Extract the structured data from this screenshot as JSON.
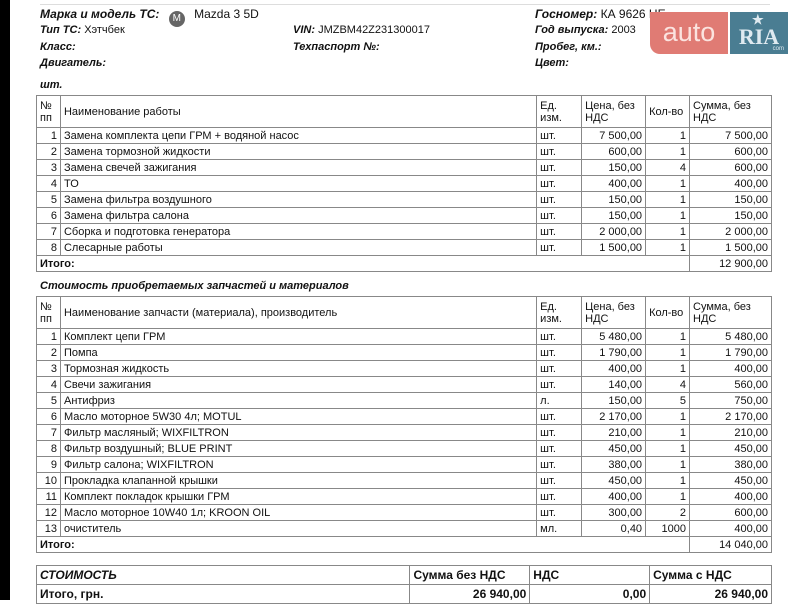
{
  "vehicle": {
    "make_label": "Марка и модель ТС:",
    "make_value": "Mazda 3 5D",
    "type_label": "Тип ТС:",
    "type_value": "Хэтчбек",
    "class_label": "Класс:",
    "engine_label": "Двигатель:",
    "vin_label": "VIN:",
    "vin_value": "JMZBM42Z231300017",
    "passport_label": "Техпаспорт №:",
    "plate_label": "Госномер:",
    "plate_value": "КА 9626 НЕ",
    "year_label": "Год выпуска:",
    "year_value": "2003",
    "mileage_label": "Пробег, км.:",
    "color_label": "Цвет:"
  },
  "logo": {
    "auto": "auto",
    "ria": "RIA",
    "com": "com",
    "auto_color": "#e07b74",
    "ria_color": "#4a7d92"
  },
  "works": {
    "section_title": "шт.",
    "headers": {
      "num": "№ пп",
      "name": "Наименование работы",
      "unit": "Ед. изм.",
      "price": "Цена, без НДС",
      "qty": "Кол-во",
      "sum": "Сумма, без НДС"
    },
    "rows": [
      {
        "n": "1",
        "name": "Замена комплекта цепи ГРМ + водяной насос",
        "unit": "шт.",
        "price": "7 500,00",
        "qty": "1",
        "sum": "7 500,00"
      },
      {
        "n": "2",
        "name": "Замена тормозной жидкости",
        "unit": "шт.",
        "price": "600,00",
        "qty": "1",
        "sum": "600,00"
      },
      {
        "n": "3",
        "name": "Замена свечей зажигания",
        "unit": "шт.",
        "price": "150,00",
        "qty": "4",
        "sum": "600,00"
      },
      {
        "n": "4",
        "name": "ТО",
        "unit": "шт.",
        "price": "400,00",
        "qty": "1",
        "sum": "400,00"
      },
      {
        "n": "5",
        "name": "Замена фильтра воздушного",
        "unit": "шт.",
        "price": "150,00",
        "qty": "1",
        "sum": "150,00"
      },
      {
        "n": "6",
        "name": "Замена фильтра салона",
        "unit": "шт.",
        "price": "150,00",
        "qty": "1",
        "sum": "150,00"
      },
      {
        "n": "7",
        "name": "Сборка и подготовка генератора",
        "unit": "шт.",
        "price": "2 000,00",
        "qty": "1",
        "sum": "2 000,00"
      },
      {
        "n": "8",
        "name": "Слесарные работы",
        "unit": "шт.",
        "price": "1 500,00",
        "qty": "1",
        "sum": "1 500,00"
      }
    ],
    "total_label": "Итого:",
    "total_value": "12 900,00"
  },
  "parts": {
    "section_title": "Стоимость приобретаемых запчастей и материалов",
    "headers": {
      "num": "№ пп",
      "name": "Наименование запчасти (материала), производитель",
      "unit": "Ед. изм.",
      "price": "Цена, без НДС",
      "qty": "Кол-во",
      "sum": "Сумма, без НДС"
    },
    "rows": [
      {
        "n": "1",
        "name": "Комплект цепи ГРМ",
        "unit": "шт.",
        "price": "5 480,00",
        "qty": "1",
        "sum": "5 480,00"
      },
      {
        "n": "2",
        "name": "Помпа",
        "unit": "шт.",
        "price": "1 790,00",
        "qty": "1",
        "sum": "1 790,00"
      },
      {
        "n": "3",
        "name": "Тормозная жидкость",
        "unit": "шт.",
        "price": "400,00",
        "qty": "1",
        "sum": "400,00"
      },
      {
        "n": "4",
        "name": "Свечи зажигания",
        "unit": "шт.",
        "price": "140,00",
        "qty": "4",
        "sum": "560,00"
      },
      {
        "n": "5",
        "name": "Антифриз",
        "unit": "л.",
        "price": "150,00",
        "qty": "5",
        "sum": "750,00"
      },
      {
        "n": "6",
        "name": "Масло моторное 5W30 4л; MOTUL",
        "unit": "шт.",
        "price": "2 170,00",
        "qty": "1",
        "sum": "2 170,00"
      },
      {
        "n": "7",
        "name": "Фильтр масляный; WIXFILTRON",
        "unit": "шт.",
        "price": "210,00",
        "qty": "1",
        "sum": "210,00"
      },
      {
        "n": "8",
        "name": "Фильтр воздушный; BLUE PRINT",
        "unit": "шт.",
        "price": "450,00",
        "qty": "1",
        "sum": "450,00"
      },
      {
        "n": "9",
        "name": "Фильтр салона; WIXFILTRON",
        "unit": "шт.",
        "price": "380,00",
        "qty": "1",
        "sum": "380,00"
      },
      {
        "n": "10",
        "name": "Прокладка клапанной крышки",
        "unit": "шт.",
        "price": "450,00",
        "qty": "1",
        "sum": "450,00"
      },
      {
        "n": "11",
        "name": "Комплект покладок крышки ГРМ",
        "unit": "шт.",
        "price": "400,00",
        "qty": "1",
        "sum": "400,00"
      },
      {
        "n": "12",
        "name": "Масло моторное 10W40 1л; KROON OIL",
        "unit": "шт.",
        "price": "300,00",
        "qty": "2",
        "sum": "600,00"
      },
      {
        "n": "13",
        "name": "очиститель",
        "unit": "мл.",
        "price": "0,40",
        "qty": "1000",
        "sum": "400,00"
      }
    ],
    "total_label": "Итого:",
    "total_value": "14 040,00"
  },
  "summary": {
    "title": "СТОИМОСТЬ",
    "col_net": "Сумма без НДС",
    "col_vat": "НДС",
    "col_gross": "Сумма с НДС",
    "row_label": "Итого, грн.",
    "net": "26 940,00",
    "vat": "0,00",
    "gross": "26 940,00"
  }
}
